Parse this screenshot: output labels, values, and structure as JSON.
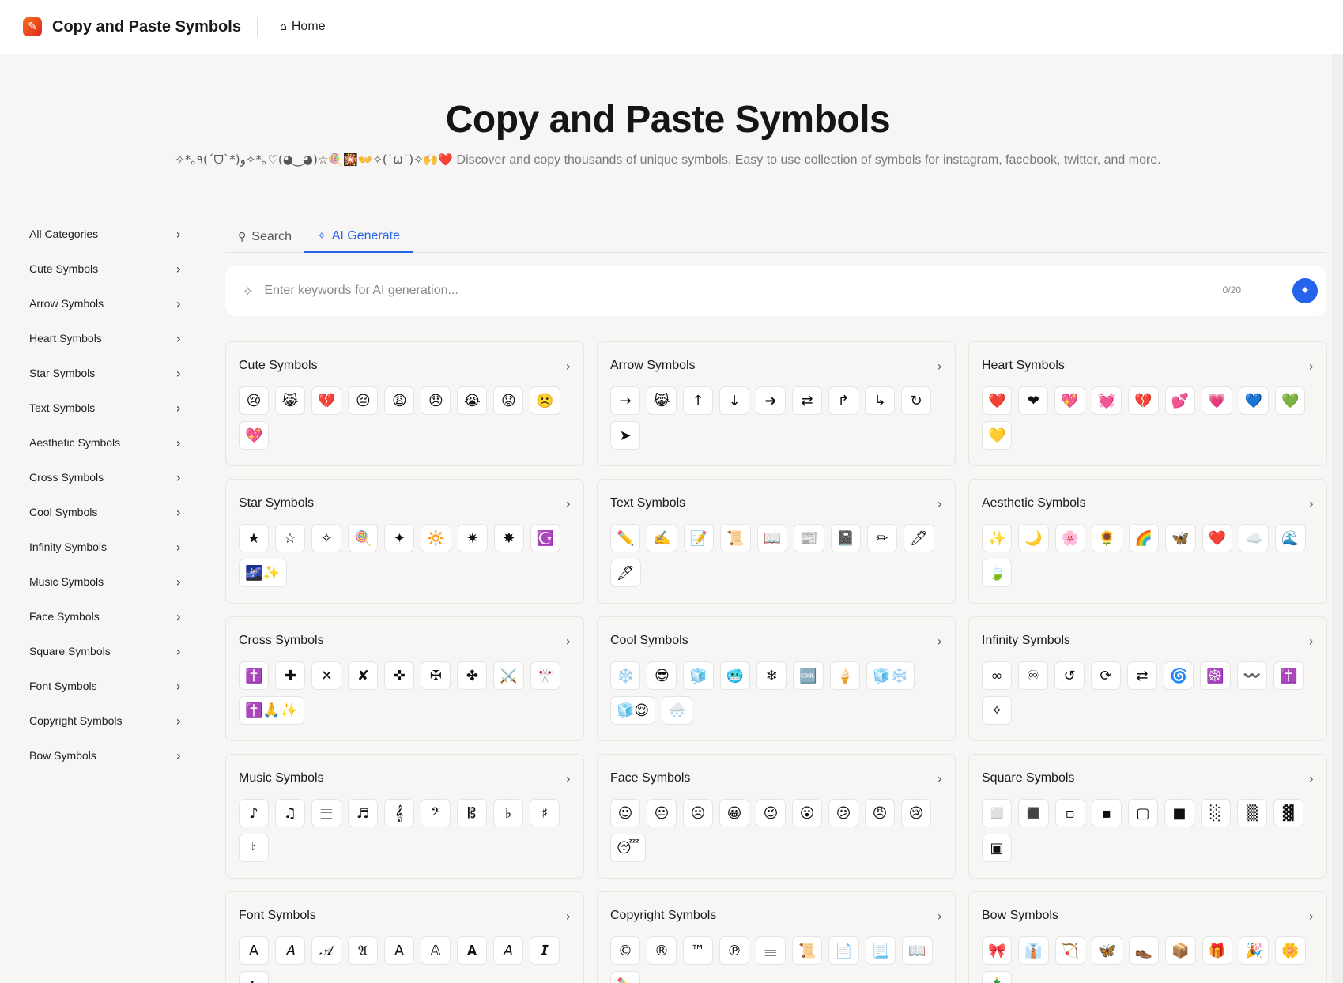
{
  "header": {
    "logo_glyph": "✎",
    "brand": "Copy and Paste Symbols",
    "home_label": "Home"
  },
  "hero": {
    "title": "Copy and Paste Symbols",
    "deco": "✧*｡٩(ˊᗜˋ*)و✧*｡♡(◕‿◕)☆🍭🎇👐✧(˙ω˙)✧🙌❤️",
    "text": " Discover and copy thousands of unique symbols. Easy to use collection of symbols for instagram, facebook, twitter, and more."
  },
  "sidebar": {
    "items": [
      "All Categories",
      "Cute Symbols",
      "Arrow Symbols",
      "Heart Symbols",
      "Star Symbols",
      "Text Symbols",
      "Aesthetic Symbols",
      "Cross Symbols",
      "Cool Symbols",
      "Infinity Symbols",
      "Music Symbols",
      "Face Symbols",
      "Square Symbols",
      "Font Symbols",
      "Copyright Symbols",
      "Bow Symbols"
    ]
  },
  "tabs": {
    "search": "Search",
    "ai_generate": "AI Generate"
  },
  "generator": {
    "placeholder": "Enter keywords for AI generation...",
    "counter": "0/20"
  },
  "cards": [
    {
      "title": "Cute Symbols",
      "symbols": [
        "😢",
        "😹",
        "💔",
        "😔",
        "😩",
        "😞",
        "😭",
        "😟",
        "☹️",
        "💖"
      ]
    },
    {
      "title": "Arrow Symbols",
      "symbols": [
        "→",
        "😹",
        "↑",
        "↓",
        "➔",
        "⇄",
        "↱",
        "↳",
        "↻",
        "➤"
      ]
    },
    {
      "title": "Heart Symbols",
      "symbols": [
        "❤️",
        "❤",
        "💖",
        "💓",
        "💔",
        "💕",
        "💗",
        "💙",
        "💚",
        "💛"
      ]
    },
    {
      "title": "Star Symbols",
      "symbols": [
        "★",
        "☆",
        "✧",
        "🍭",
        "✦",
        "🔆",
        "✷",
        "✸",
        "☪️",
        "🌌✨"
      ]
    },
    {
      "title": "Text Symbols",
      "symbols": [
        "✏️",
        "✍️",
        "📝",
        "📜",
        "📖",
        "📰",
        "📓",
        "✏",
        "🖊",
        "🖋"
      ]
    },
    {
      "title": "Aesthetic Symbols",
      "symbols": [
        "✨",
        "🌙",
        "🌸",
        "🌻",
        "🌈",
        "🦋",
        "❤️",
        "☁️",
        "🌊",
        "🍃"
      ]
    },
    {
      "title": "Cross Symbols",
      "symbols": [
        "✝️",
        "✚",
        "✕",
        "✘",
        "✜",
        "✠",
        "✤",
        "⚔️",
        "🎌",
        "✝️🙏✨"
      ]
    },
    {
      "title": "Cool Symbols",
      "symbols": [
        "❄️",
        "😎",
        "🧊",
        "🥶",
        "❄",
        "🆒",
        "🍦",
        "🧊❄️",
        "🧊😌",
        "🌨️"
      ]
    },
    {
      "title": "Infinity Symbols",
      "symbols": [
        "∞",
        "♾",
        "↺",
        "⟳",
        "⇄",
        "🌀",
        "☸️",
        "〰️",
        "✝️",
        "✧"
      ]
    },
    {
      "title": "Music Symbols",
      "symbols": [
        "♪",
        "♫",
        "𝄙",
        "♬",
        "𝄞",
        "𝄢",
        "𝄡",
        "♭",
        "♯",
        "♮"
      ]
    },
    {
      "title": "Face Symbols",
      "symbols": [
        "☺",
        "😐",
        "☹",
        "😀",
        "😉",
        "😮",
        "😕",
        "😠",
        "😢",
        "😴"
      ]
    },
    {
      "title": "Square Symbols",
      "symbols": [
        "◻️",
        "◼️",
        "▫",
        "▪",
        "▢",
        "■",
        "░",
        "▒",
        "▓",
        "▣"
      ]
    },
    {
      "title": "Font Symbols",
      "symbols": [
        "A",
        "𝐴",
        "𝒜",
        "𝔄",
        "𝖠",
        "𝔸",
        "𝐀",
        "𝘈",
        "𝙄",
        "𝖇"
      ]
    },
    {
      "title": "Copyright Symbols",
      "symbols": [
        "©",
        "®",
        "™",
        "℗",
        "𝄙",
        "📜",
        "📄",
        "📃",
        "📖",
        "✏️"
      ]
    },
    {
      "title": "Bow Symbols",
      "symbols": [
        "🎀",
        "👔",
        "🏹",
        "🦋",
        "👞",
        "📦",
        "🎁",
        "🎉",
        "🌼",
        "🎄"
      ]
    }
  ]
}
